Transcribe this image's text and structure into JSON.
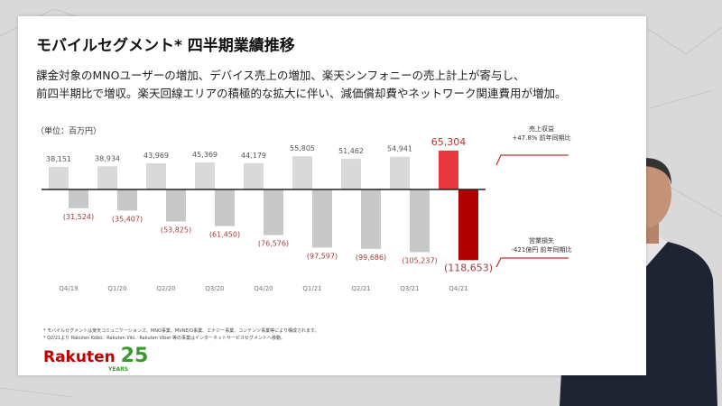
{
  "title": "モバイルセグメント* 四半期業績推移",
  "subtitle_lines": [
    "課金対象のMNOユーザーの増加、デバイス売上の増加、楽天シンフォニーの売上計上が寄与し、",
    "前四半期比で増収。楽天回線エリアの積極的な拡大に伴い、減価償却費やネットワーク関連費用が増加。"
  ],
  "unit": "（単位：百万円）",
  "chart_data": {
    "type": "bar",
    "categories": [
      "Q4/19",
      "Q1/20",
      "Q2/20",
      "Q3/20",
      "Q4/20",
      "Q1/21",
      "Q2/21",
      "Q3/21",
      "Q4/21"
    ],
    "series": [
      {
        "name": "売上収益",
        "values": [
          38151,
          38934,
          43969,
          45369,
          44179,
          55805,
          51462,
          54941,
          65304
        ],
        "labels": [
          "38,151",
          "38,934",
          "43,969",
          "45,369",
          "44,179",
          "55,805",
          "51,462",
          "54,941",
          "65,304"
        ]
      },
      {
        "name": "営業損失",
        "values": [
          -31524,
          -35407,
          -53825,
          -61450,
          -76576,
          -97597,
          -99686,
          -105237,
          -118653
        ],
        "labels": [
          "(31,524)",
          "(35,407)",
          "(53,825)",
          "(61,450)",
          "(76,576)",
          "(97,597)",
          "(99,686)",
          "(105,237)",
          "(118,653)"
        ]
      }
    ],
    "colors": {
      "revenue": "#d9d9d9",
      "loss": "#c8c8c8",
      "revenue_highlight": "#e8383d",
      "loss_highlight": "#b00000",
      "loss_label": "#a33a3a"
    }
  },
  "annotations": {
    "revenue_title": "売上収益",
    "revenue_change": "+47.8% 前年同期比",
    "loss_title": "営業損失",
    "loss_change": "-421億円 前年同期比"
  },
  "footnotes": [
    "* モバイルセグメントは楽天コミュニケーションズ、MNO事業、MVNE/O事業、エナジー事業、コンテンツ事業等により構成されます。",
    "* Q2/21より Rakuten Kobo、Rakuten Viki、Rakuten Viber 等の事業はインターネットサービスセグメントへ移動。"
  ],
  "logo": {
    "brand": "Rakuten",
    "number": "25",
    "years": "YEARS"
  }
}
